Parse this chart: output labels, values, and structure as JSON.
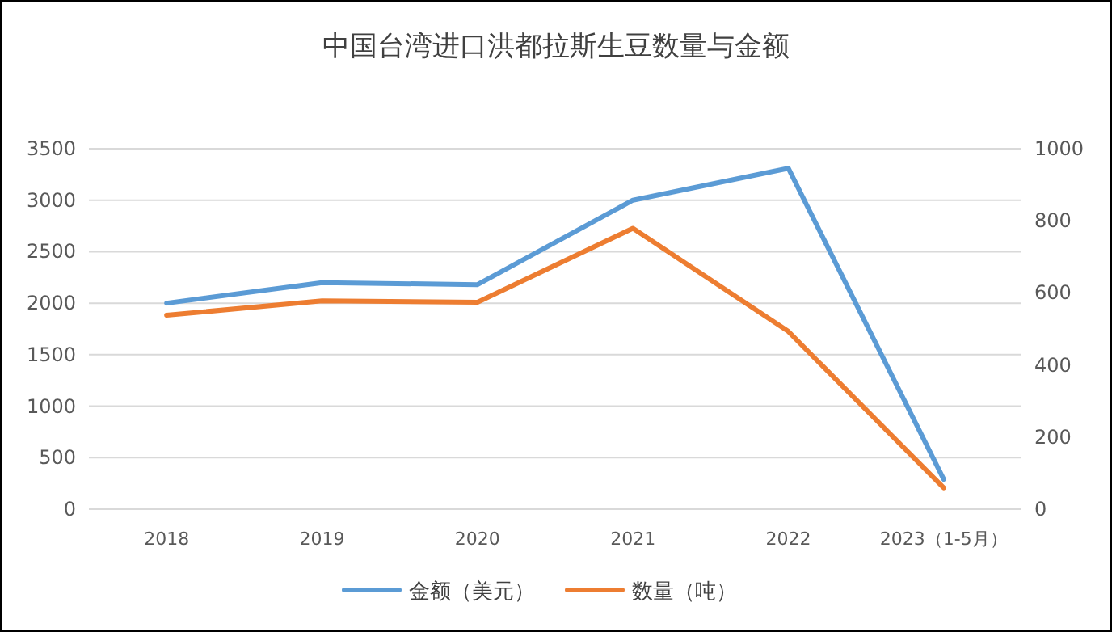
{
  "chart_data": {
    "type": "line",
    "title": "中国台湾进口洪都拉斯生豆数量与金额",
    "categories": [
      "2018",
      "2019",
      "2020",
      "2021",
      "2022",
      "2023（1-5月）"
    ],
    "series": [
      {
        "name": "金额（美元）",
        "color": "#5b9bd5",
        "values": [
          2000,
          2200,
          2180,
          3000,
          3310,
          290
        ]
      },
      {
        "name": "数量（吨）",
        "color": "#ed7d31",
        "axis": "y2",
        "values": [
          538,
          578,
          574,
          779,
          493,
          59
        ]
      }
    ],
    "ylim": [
      0,
      3500
    ],
    "yticks": [
      0,
      500,
      1000,
      1500,
      2000,
      2500,
      3000,
      3500
    ],
    "y2lim": [
      0,
      1000
    ],
    "y2ticks": [
      0,
      200,
      400,
      600,
      800,
      1000
    ],
    "grid": "y",
    "legend": "bottom",
    "marker": "none",
    "line_style": "solid"
  }
}
